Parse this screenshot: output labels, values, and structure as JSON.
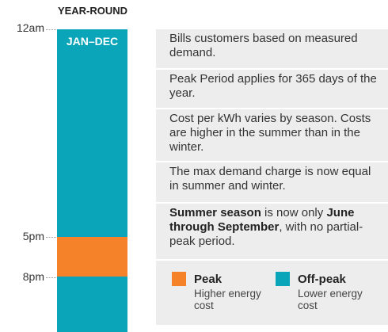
{
  "header": {
    "title": "YEAR-ROUND"
  },
  "bar": {
    "label": "JAN–DEC"
  },
  "times": [
    "12am",
    "5pm",
    "8pm"
  ],
  "notes": [
    "Bills customers based on measured demand.",
    "Peak Period applies for 365 days of the year.",
    "Cost per kWh varies by season. Costs are higher in the summer than in the winter.",
    "The max demand charge is now equal in summer and winter."
  ],
  "season_note": [
    "Summer season",
    " is now only ",
    "June through September",
    ", with no partial-peak period."
  ],
  "legend": [
    {
      "name": "Peak",
      "description": "Higher energy cost"
    },
    {
      "name": "Off-peak",
      "description": "Lower energy cost"
    }
  ]
}
